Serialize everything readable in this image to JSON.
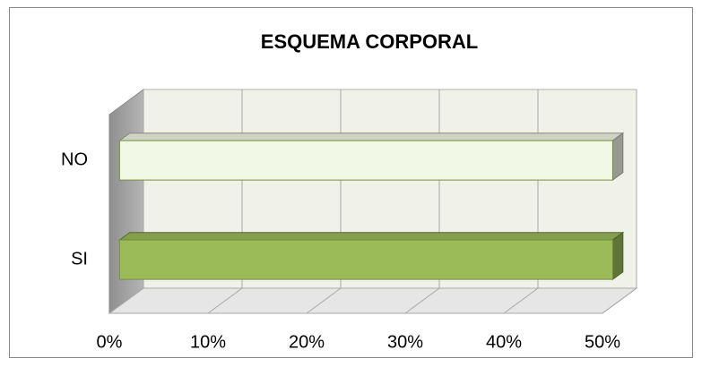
{
  "chart_data": {
    "type": "bar3d",
    "title": "ESQUEMA CORPORAL",
    "categories": [
      "NO",
      "SI"
    ],
    "values": [
      50,
      50
    ],
    "colors": [
      "#f2f8e6",
      "#9bbb59"
    ],
    "xlim": [
      0,
      50
    ],
    "xticks": [
      {
        "value": 0,
        "label": "0%"
      },
      {
        "value": 10,
        "label": "10%"
      },
      {
        "value": 20,
        "label": "20%"
      },
      {
        "value": 30,
        "label": "30%"
      },
      {
        "value": 40,
        "label": "40%"
      },
      {
        "value": 50,
        "label": "50%"
      }
    ],
    "grid": true
  }
}
